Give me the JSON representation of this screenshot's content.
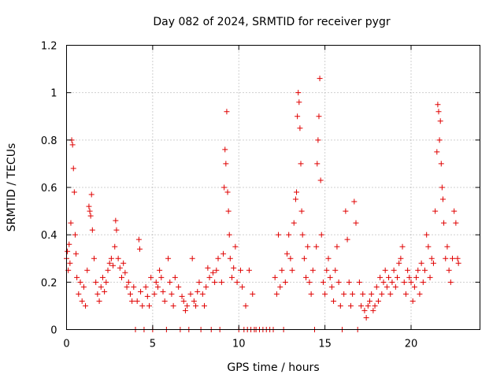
{
  "chart_data": {
    "type": "scatter",
    "title": "Day 082 of 2024, SRMTID for receiver pygr",
    "xlabel": "GPS time / hours",
    "ylabel": "SRMTID / TECUs",
    "xlim": [
      0,
      24
    ],
    "ylim": [
      0,
      1.2
    ],
    "xticks": [
      0,
      5,
      10,
      15,
      20
    ],
    "xtick_labels": [
      "0",
      "5",
      "10",
      "15",
      "20"
    ],
    "yticks": [
      0,
      0.2,
      0.4,
      0.6,
      0.8,
      1.0,
      1.2
    ],
    "ytick_labels": [
      "0",
      "0.2",
      "0.4",
      "0.6",
      "0.8",
      "1",
      "1.2"
    ],
    "grid": true,
    "marker": "+",
    "color": "#e00000",
    "series": [
      {
        "name": "SRMTID",
        "points": [
          [
            0.0,
            0.3
          ],
          [
            0.05,
            0.33
          ],
          [
            0.1,
            0.25
          ],
          [
            0.15,
            0.36
          ],
          [
            0.2,
            0.28
          ],
          [
            0.25,
            0.45
          ],
          [
            0.3,
            0.8
          ],
          [
            0.35,
            0.78
          ],
          [
            0.4,
            0.68
          ],
          [
            0.45,
            0.58
          ],
          [
            0.5,
            0.4
          ],
          [
            0.55,
            0.32
          ],
          [
            0.6,
            0.22
          ],
          [
            0.7,
            0.15
          ],
          [
            0.8,
            0.2
          ],
          [
            0.9,
            0.12
          ],
          [
            1.0,
            0.18
          ],
          [
            1.1,
            0.1
          ],
          [
            1.2,
            0.25
          ],
          [
            1.3,
            0.52
          ],
          [
            1.35,
            0.5
          ],
          [
            1.4,
            0.48
          ],
          [
            1.45,
            0.57
          ],
          [
            1.5,
            0.42
          ],
          [
            1.6,
            0.3
          ],
          [
            1.7,
            0.2
          ],
          [
            1.8,
            0.15
          ],
          [
            1.9,
            0.12
          ],
          [
            2.0,
            0.18
          ],
          [
            2.1,
            0.22
          ],
          [
            2.2,
            0.16
          ],
          [
            2.3,
            0.2
          ],
          [
            2.4,
            0.25
          ],
          [
            2.5,
            0.28
          ],
          [
            2.6,
            0.3
          ],
          [
            2.7,
            0.27
          ],
          [
            2.8,
            0.35
          ],
          [
            2.85,
            0.46
          ],
          [
            2.9,
            0.42
          ],
          [
            3.0,
            0.3
          ],
          [
            3.1,
            0.26
          ],
          [
            3.2,
            0.22
          ],
          [
            3.3,
            0.28
          ],
          [
            3.4,
            0.24
          ],
          [
            3.5,
            0.18
          ],
          [
            3.6,
            0.2
          ],
          [
            3.7,
            0.15
          ],
          [
            3.8,
            0.12
          ],
          [
            3.9,
            0.18
          ],
          [
            4.0,
            0.0
          ],
          [
            4.1,
            0.12
          ],
          [
            4.2,
            0.38
          ],
          [
            4.25,
            0.34
          ],
          [
            4.3,
            0.16
          ],
          [
            4.4,
            0.1
          ],
          [
            4.5,
            0.0
          ],
          [
            4.6,
            0.18
          ],
          [
            4.7,
            0.14
          ],
          [
            4.8,
            0.1
          ],
          [
            4.9,
            0.22
          ],
          [
            5.0,
            0.0
          ],
          [
            5.1,
            0.15
          ],
          [
            5.2,
            0.2
          ],
          [
            5.3,
            0.18
          ],
          [
            5.4,
            0.25
          ],
          [
            5.5,
            0.22
          ],
          [
            5.6,
            0.16
          ],
          [
            5.7,
            0.12
          ],
          [
            5.8,
            0.0
          ],
          [
            5.9,
            0.3
          ],
          [
            6.0,
            0.2
          ],
          [
            6.1,
            0.15
          ],
          [
            6.2,
            0.1
          ],
          [
            6.3,
            0.22
          ],
          [
            6.5,
            0.18
          ],
          [
            6.6,
            0.0
          ],
          [
            6.7,
            0.14
          ],
          [
            6.8,
            0.12
          ],
          [
            6.9,
            0.08
          ],
          [
            7.0,
            0.1
          ],
          [
            7.1,
            0.0
          ],
          [
            7.2,
            0.15
          ],
          [
            7.3,
            0.3
          ],
          [
            7.4,
            0.12
          ],
          [
            7.5,
            0.1
          ],
          [
            7.6,
            0.16
          ],
          [
            7.7,
            0.2
          ],
          [
            7.8,
            0.0
          ],
          [
            7.9,
            0.15
          ],
          [
            8.0,
            0.1
          ],
          [
            8.1,
            0.18
          ],
          [
            8.2,
            0.26
          ],
          [
            8.3,
            0.22
          ],
          [
            8.4,
            0.0
          ],
          [
            8.5,
            0.24
          ],
          [
            8.6,
            0.2
          ],
          [
            8.7,
            0.25
          ],
          [
            8.8,
            0.3
          ],
          [
            8.9,
            0.0
          ],
          [
            9.0,
            0.2
          ],
          [
            9.1,
            0.32
          ],
          [
            9.15,
            0.6
          ],
          [
            9.2,
            0.76
          ],
          [
            9.25,
            0.7
          ],
          [
            9.3,
            0.92
          ],
          [
            9.35,
            0.58
          ],
          [
            9.4,
            0.5
          ],
          [
            9.45,
            0.4
          ],
          [
            9.5,
            0.3
          ],
          [
            9.6,
            0.22
          ],
          [
            9.7,
            0.26
          ],
          [
            9.8,
            0.35
          ],
          [
            9.9,
            0.2
          ],
          [
            10.0,
            0.0
          ],
          [
            10.1,
            0.25
          ],
          [
            10.2,
            0.18
          ],
          [
            10.3,
            0.0
          ],
          [
            10.4,
            0.1
          ],
          [
            10.5,
            0.0
          ],
          [
            10.6,
            0.25
          ],
          [
            10.7,
            0.0
          ],
          [
            10.8,
            0.15
          ],
          [
            10.9,
            0.0
          ],
          [
            11.0,
            0.0
          ],
          [
            11.2,
            0.0
          ],
          [
            11.4,
            0.0
          ],
          [
            11.6,
            0.0
          ],
          [
            11.8,
            0.0
          ],
          [
            12.0,
            0.0
          ],
          [
            12.1,
            0.22
          ],
          [
            12.2,
            0.15
          ],
          [
            12.3,
            0.4
          ],
          [
            12.4,
            0.18
          ],
          [
            12.5,
            0.25
          ],
          [
            12.6,
            0.0
          ],
          [
            12.7,
            0.2
          ],
          [
            12.8,
            0.32
          ],
          [
            12.9,
            0.4
          ],
          [
            13.0,
            0.3
          ],
          [
            13.1,
            0.25
          ],
          [
            13.2,
            0.45
          ],
          [
            13.3,
            0.55
          ],
          [
            13.35,
            0.58
          ],
          [
            13.4,
            0.9
          ],
          [
            13.45,
            1.0
          ],
          [
            13.5,
            0.96
          ],
          [
            13.55,
            0.85
          ],
          [
            13.6,
            0.7
          ],
          [
            13.65,
            0.5
          ],
          [
            13.7,
            0.4
          ],
          [
            13.8,
            0.3
          ],
          [
            13.9,
            0.22
          ],
          [
            14.0,
            0.35
          ],
          [
            14.1,
            0.2
          ],
          [
            14.2,
            0.15
          ],
          [
            14.3,
            0.25
          ],
          [
            14.4,
            0.0
          ],
          [
            14.5,
            0.35
          ],
          [
            14.55,
            0.7
          ],
          [
            14.6,
            0.8
          ],
          [
            14.65,
            0.9
          ],
          [
            14.7,
            1.06
          ],
          [
            14.75,
            0.63
          ],
          [
            14.8,
            0.4
          ],
          [
            14.9,
            0.2
          ],
          [
            15.0,
            0.15
          ],
          [
            15.1,
            0.25
          ],
          [
            15.2,
            0.3
          ],
          [
            15.3,
            0.22
          ],
          [
            15.4,
            0.18
          ],
          [
            15.5,
            0.12
          ],
          [
            15.6,
            0.25
          ],
          [
            15.7,
            0.35
          ],
          [
            15.8,
            0.2
          ],
          [
            15.9,
            0.1
          ],
          [
            16.0,
            0.0
          ],
          [
            16.1,
            0.15
          ],
          [
            16.2,
            0.5
          ],
          [
            16.3,
            0.38
          ],
          [
            16.4,
            0.2
          ],
          [
            16.5,
            0.1
          ],
          [
            16.6,
            0.15
          ],
          [
            16.7,
            0.54
          ],
          [
            16.8,
            0.45
          ],
          [
            16.9,
            0.0
          ],
          [
            17.0,
            0.2
          ],
          [
            17.1,
            0.1
          ],
          [
            17.2,
            0.15
          ],
          [
            17.3,
            0.08
          ],
          [
            17.4,
            0.05
          ],
          [
            17.5,
            0.1
          ],
          [
            17.6,
            0.12
          ],
          [
            17.7,
            0.15
          ],
          [
            17.8,
            0.08
          ],
          [
            17.9,
            0.1
          ],
          [
            18.0,
            0.18
          ],
          [
            18.1,
            0.12
          ],
          [
            18.2,
            0.22
          ],
          [
            18.3,
            0.15
          ],
          [
            18.4,
            0.2
          ],
          [
            18.5,
            0.25
          ],
          [
            18.6,
            0.18
          ],
          [
            18.7,
            0.22
          ],
          [
            18.8,
            0.15
          ],
          [
            18.9,
            0.2
          ],
          [
            19.0,
            0.25
          ],
          [
            19.1,
            0.18
          ],
          [
            19.2,
            0.22
          ],
          [
            19.3,
            0.28
          ],
          [
            19.4,
            0.3
          ],
          [
            19.5,
            0.35
          ],
          [
            19.6,
            0.2
          ],
          [
            19.7,
            0.15
          ],
          [
            19.8,
            0.25
          ],
          [
            19.9,
            0.22
          ],
          [
            20.0,
            0.2
          ],
          [
            20.1,
            0.12
          ],
          [
            20.2,
            0.18
          ],
          [
            20.3,
            0.22
          ],
          [
            20.4,
            0.25
          ],
          [
            20.5,
            0.15
          ],
          [
            20.6,
            0.28
          ],
          [
            20.7,
            0.2
          ],
          [
            20.8,
            0.25
          ],
          [
            20.9,
            0.4
          ],
          [
            21.0,
            0.35
          ],
          [
            21.1,
            0.22
          ],
          [
            21.2,
            0.3
          ],
          [
            21.3,
            0.28
          ],
          [
            21.4,
            0.5
          ],
          [
            21.5,
            0.75
          ],
          [
            21.55,
            0.95
          ],
          [
            21.6,
            0.92
          ],
          [
            21.65,
            0.8
          ],
          [
            21.7,
            0.88
          ],
          [
            21.75,
            0.7
          ],
          [
            21.8,
            0.6
          ],
          [
            21.85,
            0.55
          ],
          [
            21.9,
            0.45
          ],
          [
            22.0,
            0.3
          ],
          [
            22.1,
            0.35
          ],
          [
            22.2,
            0.25
          ],
          [
            22.3,
            0.2
          ],
          [
            22.4,
            0.3
          ],
          [
            22.5,
            0.5
          ],
          [
            22.6,
            0.45
          ],
          [
            22.7,
            0.3
          ],
          [
            22.75,
            0.28
          ]
        ]
      }
    ]
  }
}
